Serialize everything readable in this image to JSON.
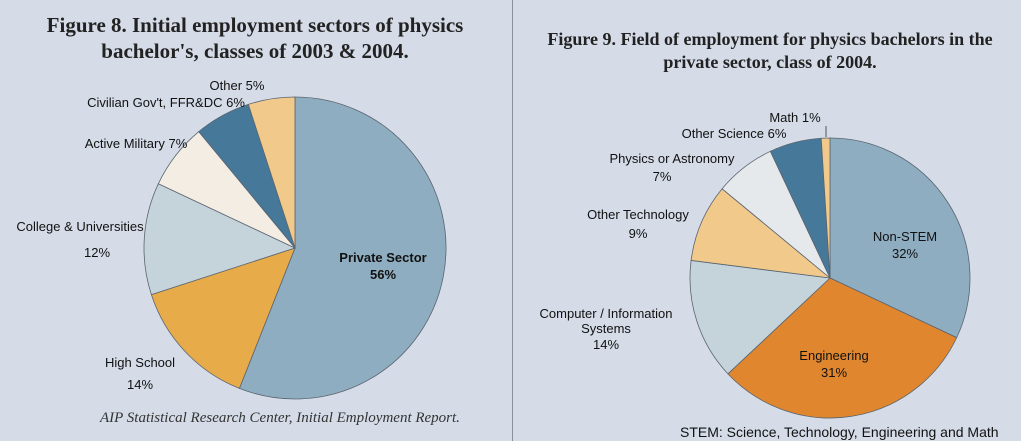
{
  "chart_data": [
    {
      "type": "pie",
      "title": "Figure 8.  Initial employment sectors of physics bachelor's, classes of 2003 & 2004.",
      "source": "AIP Statistical Research Center, Initial Employment Report.",
      "slices": [
        {
          "label": "Private Sector",
          "value": 56,
          "pct": "56%",
          "color": "#8fadc0"
        },
        {
          "label": "High School",
          "value": 14,
          "pct": "14%",
          "color": "#e8ab4a"
        },
        {
          "label": "College & Universities",
          "value": 12,
          "pct": "12%",
          "color": "#c5d3db"
        },
        {
          "label": "Active Military",
          "value": 7,
          "pct": "7%",
          "color": "#f3ede3"
        },
        {
          "label": "Civilian Gov't, FFR&DC",
          "value": 6,
          "pct": "6%",
          "color": "#46789a"
        },
        {
          "label": "Other",
          "value": 5,
          "pct": "5%",
          "color": "#f0c98b"
        }
      ]
    },
    {
      "type": "pie",
      "title": "Figure 9.  Field of employment for physics bachelors in the private sector, class of 2004.",
      "note": "STEM: Science, Technology, Engineering and Math",
      "slices": [
        {
          "label": "Non-STEM",
          "value": 32,
          "pct": "32%",
          "color": "#8fadc0"
        },
        {
          "label": "Engineering",
          "value": 31,
          "pct": "31%",
          "color": "#e0862e"
        },
        {
          "label": "Computer / Information Systems",
          "value": 14,
          "pct": "14%",
          "color": "#c5d3db"
        },
        {
          "label": "Other Technology",
          "value": 9,
          "pct": "9%",
          "color": "#f0c98b"
        },
        {
          "label": "Physics or Astronomy",
          "value": 7,
          "pct": "7%",
          "color": "#e6e9ec"
        },
        {
          "label": "Other Science",
          "value": 6,
          "pct": "6%",
          "color": "#46789a"
        },
        {
          "label": "Math",
          "value": 1,
          "pct": "1%",
          "color": "#f0c98b"
        }
      ]
    }
  ]
}
